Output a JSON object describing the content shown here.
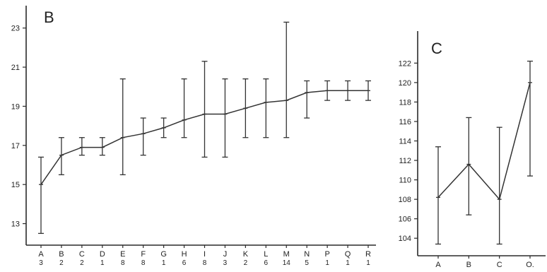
{
  "chart_data": [
    {
      "type": "line",
      "panel_label": "B",
      "categories": [
        "A",
        "B",
        "C",
        "D",
        "E",
        "F",
        "G",
        "H",
        "I",
        "J",
        "K",
        "L",
        "M",
        "N",
        "P",
        "Q",
        "R"
      ],
      "counts": [
        "3",
        "2",
        "2",
        "1",
        "8",
        "8",
        "1",
        "6",
        "8",
        "3",
        "2",
        "6",
        "14",
        "5",
        "1",
        "1",
        "1"
      ],
      "values": [
        15.0,
        16.5,
        16.9,
        16.9,
        17.4,
        17.6,
        17.9,
        18.3,
        18.6,
        18.6,
        18.9,
        19.2,
        19.3,
        19.7,
        19.8,
        19.8,
        19.8
      ],
      "err_low": [
        12.5,
        15.5,
        16.5,
        16.5,
        15.5,
        16.5,
        17.4,
        17.4,
        16.4,
        16.4,
        17.4,
        17.4,
        17.4,
        18.4,
        19.3,
        19.3,
        19.3
      ],
      "err_high": [
        16.4,
        17.4,
        17.4,
        17.4,
        20.4,
        18.4,
        18.4,
        20.4,
        21.3,
        20.4,
        20.4,
        20.4,
        23.3,
        20.3,
        20.3,
        20.3,
        20.3
      ],
      "yticks": [
        13,
        15,
        17,
        19,
        21,
        23
      ],
      "ylim": [
        11.9,
        24.0
      ],
      "grid": false
    },
    {
      "type": "line",
      "panel_label": "C",
      "categories": [
        "A",
        "B",
        "C",
        "O."
      ],
      "values": [
        108.2,
        111.6,
        108.0,
        120.0
      ],
      "err_low": [
        103.4,
        106.4,
        103.4,
        110.4
      ],
      "err_high": [
        113.4,
        116.4,
        115.4,
        122.2
      ],
      "yticks": [
        104,
        106,
        108,
        110,
        112,
        114,
        116,
        118,
        120,
        122
      ],
      "ylim": [
        102.2,
        125.0
      ],
      "grid": false
    }
  ]
}
